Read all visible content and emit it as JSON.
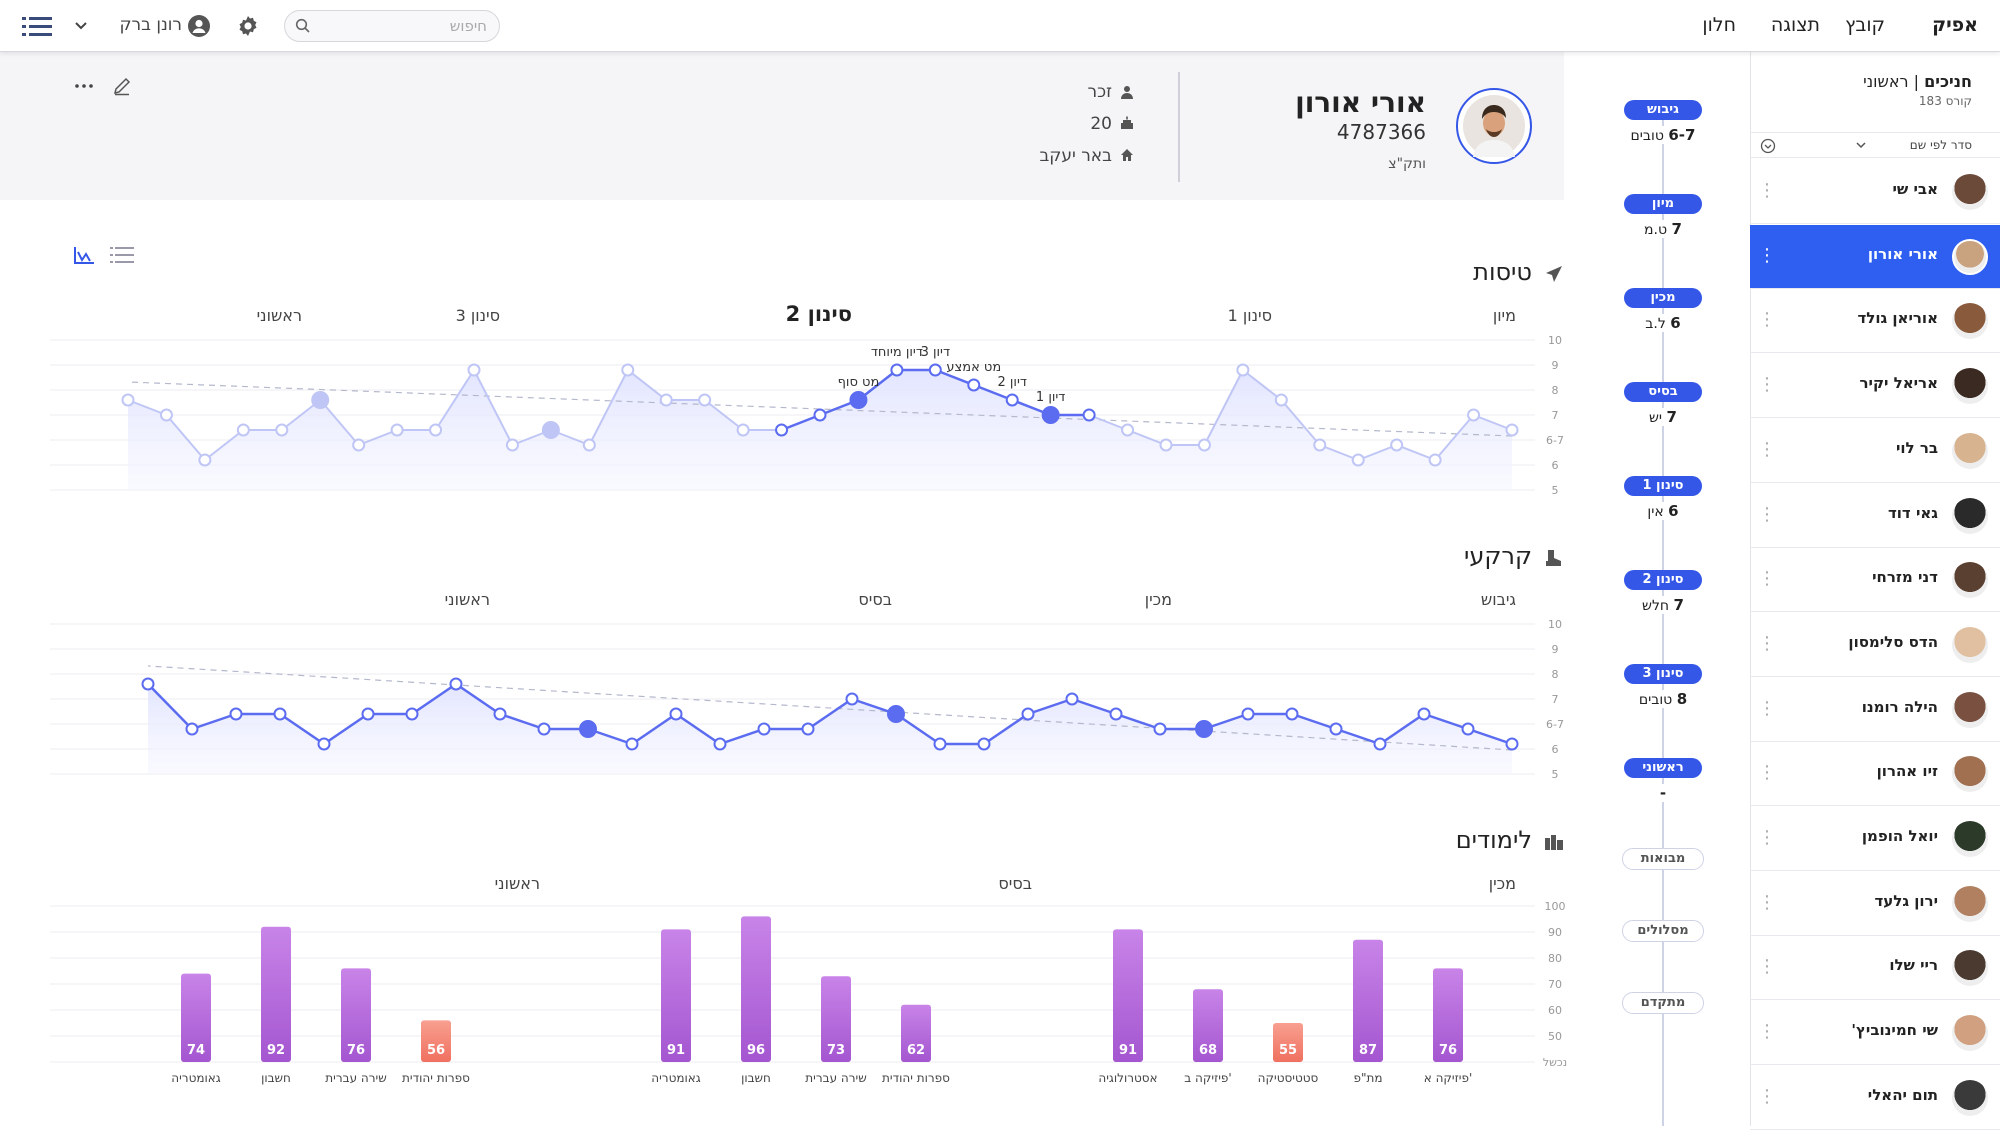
{
  "menu": {
    "brand": "אפיק",
    "items": [
      "קובץ",
      "תצוגה",
      "חלון"
    ]
  },
  "topbar": {
    "search_placeholder": "חיפוש",
    "user_name": "רונן ברק"
  },
  "sidebar": {
    "title": "חניכים",
    "subtitle": "ראשוני",
    "course": "קורס 183",
    "sort_label": "סדר לפי שם",
    "selected_index": 1,
    "items": [
      "אבי שי",
      "אורי אורון",
      "אוריאן גולד",
      "אריאל יקיר",
      "בר לוי",
      "גאי דוד",
      "דני מזרחי",
      "הדס סלימסון",
      "הילה רומנו",
      "זיו אהרון",
      "יואל הופמן",
      "ירון גלעד",
      "ריי שלו",
      "שי חמינוביץ'",
      "תום יהאלי"
    ]
  },
  "profile": {
    "name": "אורי אורון",
    "id_number": "4787366",
    "status": "ותק\"צ",
    "gender": "זכר",
    "age": "20",
    "city": "באר יעקב"
  },
  "timeline": [
    {
      "label": "גיבוש",
      "value": "6-7",
      "unit": "טובים"
    },
    {
      "label": "מיון",
      "value": "7",
      "unit": "ט.מ"
    },
    {
      "label": "מכין",
      "value": "6",
      "unit": "ל.ב"
    },
    {
      "label": "בסיס",
      "value": "7",
      "unit": "יש"
    },
    {
      "label": "סינון 1",
      "value": "6",
      "unit": "אין"
    },
    {
      "label": "סינון 2",
      "value": "7",
      "unit": "חלש"
    },
    {
      "label": "סינון 3",
      "value": "8",
      "unit": "טובים"
    },
    {
      "label": "ראשוני",
      "value": "-",
      "unit": ""
    }
  ],
  "timeline_extras": [
    "מבואות",
    "מסלולים",
    "מתקדם"
  ],
  "sections": {
    "flight": {
      "title": "טיסות",
      "segments": [
        "מיון",
        "סינון 1",
        "סינון 2",
        "סינון 3",
        "ראשוני"
      ],
      "point_labels": [
        "דיון 1",
        "דיון 2",
        "מט אמצע",
        "דיון 3",
        "דיון מיוחד",
        "מט סוף"
      ]
    },
    "ground": {
      "title": "קרקעי",
      "segments": [
        "גיבוש",
        "מכין",
        "בסיס",
        "ראשוני"
      ]
    },
    "studies": {
      "title": "לימודים",
      "segments": [
        "מכין",
        "בסיס",
        "ראשוני"
      ]
    }
  },
  "chart_data": [
    {
      "type": "line",
      "title": "טיסות",
      "y_ticks": [
        "10",
        "9",
        "8",
        "7",
        "6-7",
        "6",
        "5"
      ],
      "ylim": [
        5,
        10
      ],
      "values": [
        7,
        7.5,
        6,
        6.5,
        6,
        6.5,
        8,
        9,
        6.5,
        6.5,
        7,
        7.5,
        7.5,
        8,
        8.5,
        9,
        9,
        8,
        7.5,
        7,
        7,
        8,
        8,
        9,
        6.5,
        7,
        6.5,
        9,
        7,
        7,
        6.5,
        8,
        7,
        7,
        6,
        7.5,
        8
      ],
      "grid": true
    },
    {
      "type": "line",
      "title": "קרקעי",
      "y_ticks": [
        "10",
        "9",
        "8",
        "7",
        "6-7",
        "6",
        "5"
      ],
      "ylim": [
        5,
        10
      ],
      "values": [
        6,
        6.5,
        7,
        6,
        6.5,
        7,
        7,
        6.5,
        6.5,
        7,
        7.5,
        7,
        6,
        6,
        7,
        7.5,
        6.5,
        6.5,
        6,
        7,
        6,
        6.5,
        6.5,
        7,
        8,
        7,
        7,
        6,
        7,
        7,
        6.5,
        8
      ],
      "grid": true
    },
    {
      "type": "bar",
      "title": "לימודים",
      "y_ticks": [
        "100",
        "90",
        "80",
        "70",
        "60",
        "50",
        "נכשל"
      ],
      "ylim": [
        40,
        100
      ],
      "fail_threshold": 60,
      "groups": [
        {
          "segment": "מכין",
          "categories": [
            "פיזיקה א'",
            "מת\"פ",
            "סטטיסטיקה",
            "פיזיקה ב'",
            "אסטרולוגיה"
          ],
          "values": [
            76,
            87,
            55,
            68,
            91
          ]
        },
        {
          "segment": "בסיס",
          "categories": [
            "ספרות יהודית",
            "שירה עברית",
            "חשבון",
            "גאומטריה"
          ],
          "values": [
            62,
            73,
            96,
            91
          ]
        },
        {
          "segment": "ראשוני",
          "categories": [
            "ספרות יהודית",
            "שירה עברית",
            "חשבון",
            "גאומטריה"
          ],
          "values": [
            56,
            76,
            92,
            74
          ]
        }
      ]
    }
  ],
  "colors": {
    "accent": "#2f5ff0",
    "line": "#5b6cf0",
    "bar": "#c07ae0",
    "fail": "#f58878"
  }
}
